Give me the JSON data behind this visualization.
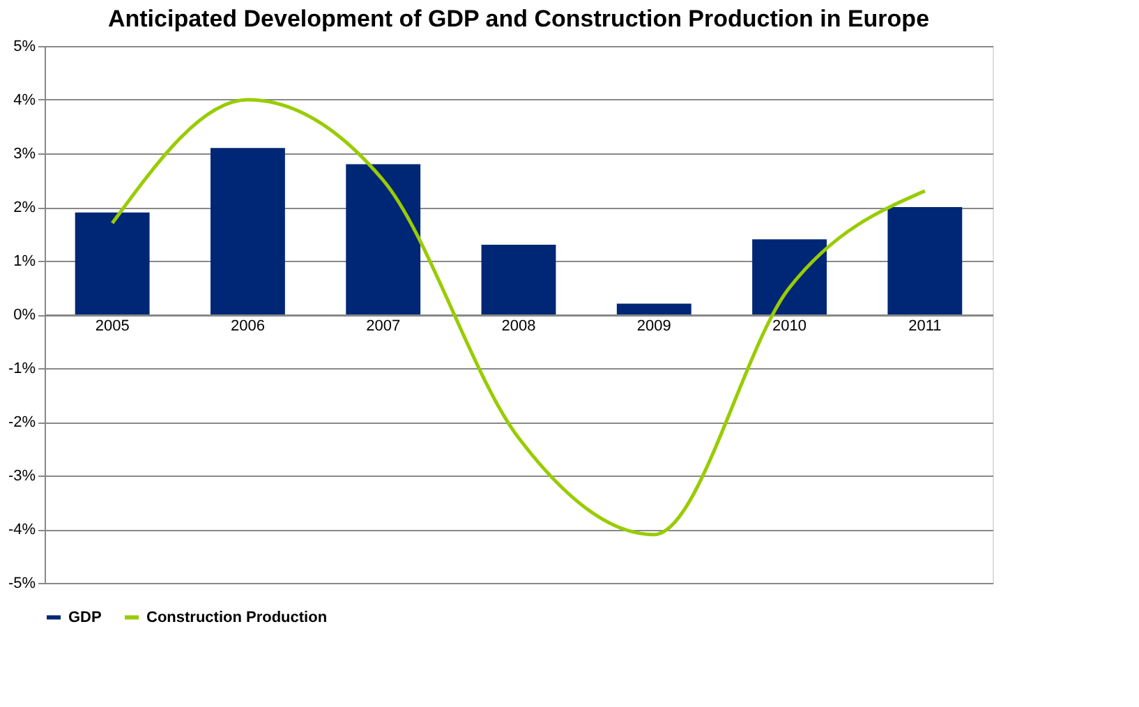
{
  "chart_data": {
    "type": "bar",
    "title": "Anticipated Development of GDP and Construction Production in Europe",
    "categories": [
      "2005",
      "2006",
      "2007",
      "2008",
      "2009",
      "2010",
      "2011"
    ],
    "series": [
      {
        "name": "GDP",
        "color": "#002776",
        "values": [
          1.9,
          3.1,
          2.8,
          1.3,
          0.2,
          1.4,
          2.0
        ]
      },
      {
        "name": "Construction Production",
        "type": "line",
        "color": "#99cc00",
        "values": [
          1.7,
          4.0,
          2.5,
          -2.3,
          -4.1,
          0.5,
          2.3
        ]
      }
    ],
    "ylim": [
      -5,
      5
    ],
    "yticks": [
      {
        "value": -5,
        "label": "-5%"
      },
      {
        "value": -4,
        "label": "-4%"
      },
      {
        "value": -3,
        "label": "-3%"
      },
      {
        "value": -2,
        "label": "-2%"
      },
      {
        "value": -1,
        "label": "-1%"
      },
      {
        "value": 0,
        "label": "0%"
      },
      {
        "value": 1,
        "label": "1%"
      },
      {
        "value": 2,
        "label": "2%"
      },
      {
        "value": 3,
        "label": "3%"
      },
      {
        "value": 4,
        "label": "4%"
      },
      {
        "value": 5,
        "label": "5%"
      }
    ],
    "grid": "y",
    "legend": "bottom",
    "marker": "none"
  }
}
